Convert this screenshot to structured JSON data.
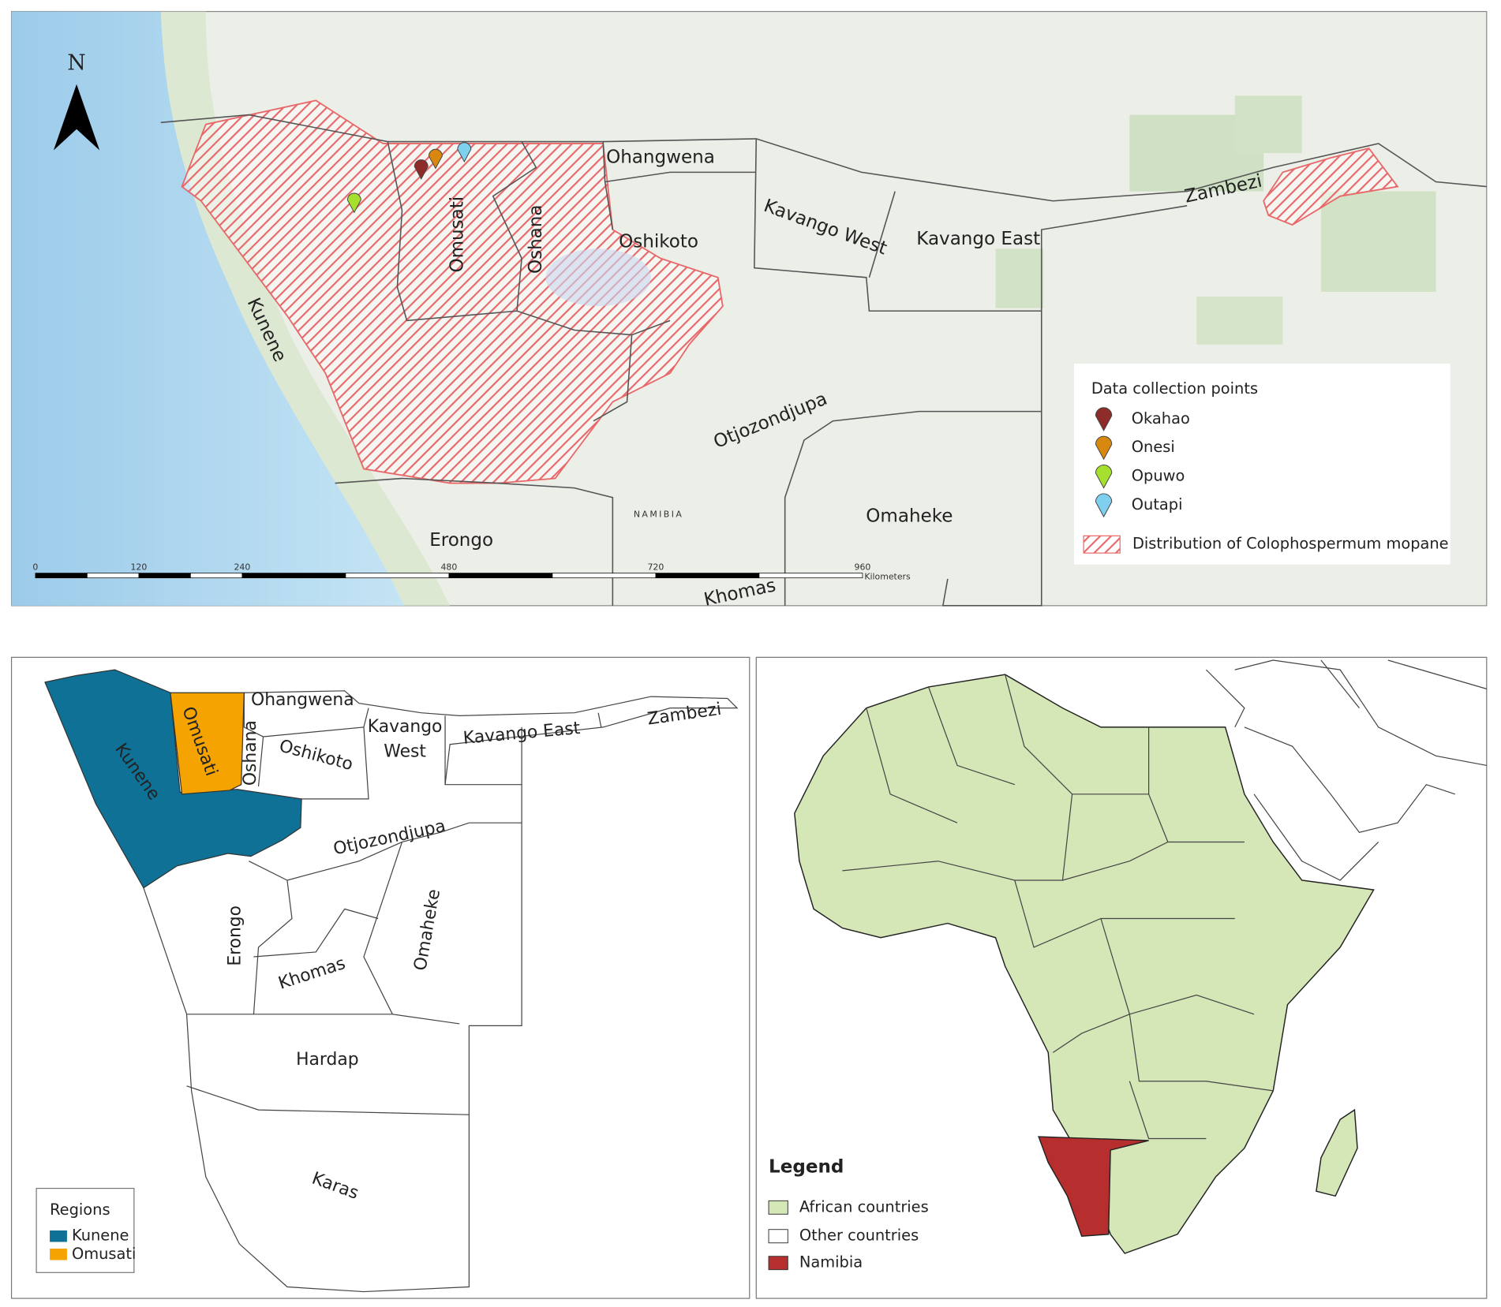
{
  "top_map": {
    "north": "N",
    "country_label": "NAMIBIA",
    "regions": [
      "Ohangwena",
      "Omusati",
      "Oshana",
      "Oshikoto",
      "Kavango West",
      "Kavango East",
      "Zambezi",
      "Kunene",
      "Otjozondjupa",
      "Omaheke",
      "Erongo",
      "Khomas"
    ],
    "legend": {
      "title": "Data collection points",
      "points": [
        {
          "name": "Okahao",
          "color": "#8e2c2a"
        },
        {
          "name": "Onesi",
          "color": "#d9880f"
        },
        {
          "name": "Opuwo",
          "color": "#a6e02e"
        },
        {
          "name": "Outapi",
          "color": "#7fd0ef"
        }
      ],
      "distribution": "Distribution of Colophospermum mopane",
      "distribution_color": "#e8686a"
    },
    "scale_bar": {
      "ticks": [
        0,
        120,
        240,
        480,
        720,
        960
      ],
      "unit": "Kilometers"
    }
  },
  "region_map": {
    "regions": [
      "Ohangwena",
      "Omusati",
      "Oshana",
      "Oshikoto",
      "Kavango",
      "West",
      "Kavango East",
      "Zambezi",
      "Kunene",
      "Otjozondjupa",
      "Erongo",
      "Khomas",
      "Omaheke",
      "Hardap",
      "Karas"
    ],
    "legend": {
      "title": "Regions",
      "items": [
        {
          "name": "Kunene",
          "color": "#0f7196"
        },
        {
          "name": "Omusati",
          "color": "#f5a300"
        }
      ]
    }
  },
  "africa_map": {
    "legend": {
      "title": "Legend",
      "items": [
        {
          "name": "African countries",
          "color": "#d5e6b7"
        },
        {
          "name": "Other countries",
          "color": "#ffffff"
        },
        {
          "name": "Namibia",
          "color": "#b72e2e"
        }
      ]
    }
  }
}
